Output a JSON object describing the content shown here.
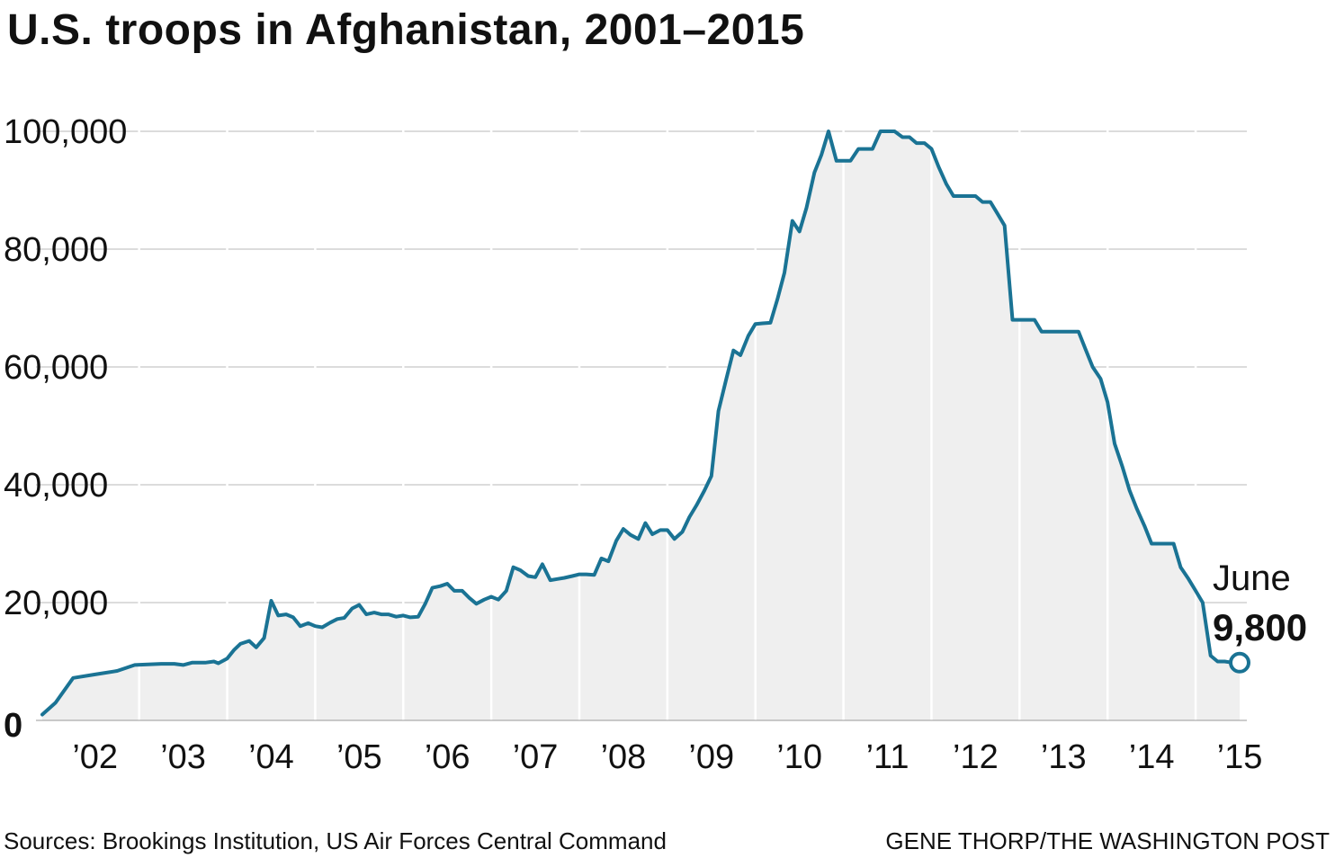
{
  "title": "U.S. troops in Afghanistan, 2001–2015",
  "sources": "Sources: Brookings Institution, US Air Forces Central Command",
  "credit": "GENE THORP/THE WASHINGTON POST",
  "annotation": {
    "label": "June",
    "value": "9,800"
  },
  "colors": {
    "line": "#1a7394",
    "area": "#efefef",
    "grid": "#c8c8c8",
    "yearline": "#ffffff"
  },
  "chart_data": {
    "type": "area",
    "title": "U.S. troops in Afghanistan, 2001–2015",
    "xlabel": "",
    "ylabel": "",
    "ylim": [
      0,
      100000
    ],
    "xlim": [
      2001.9,
      2015.5
    ],
    "grid": true,
    "y_ticks": [
      {
        "value": 0,
        "label": "0"
      },
      {
        "value": 20000,
        "label": "20,000"
      },
      {
        "value": 40000,
        "label": "40,000"
      },
      {
        "value": 60000,
        "label": "60,000"
      },
      {
        "value": 80000,
        "label": "80,000"
      },
      {
        "value": 100000,
        "label": "100,000"
      }
    ],
    "x_ticks": [
      {
        "value": 2002.5,
        "label": "’02"
      },
      {
        "value": 2003.5,
        "label": "’03"
      },
      {
        "value": 2004.5,
        "label": "’04"
      },
      {
        "value": 2005.5,
        "label": "’05"
      },
      {
        "value": 2006.5,
        "label": "’06"
      },
      {
        "value": 2007.5,
        "label": "’07"
      },
      {
        "value": 2008.5,
        "label": "’08"
      },
      {
        "value": 2009.5,
        "label": "’09"
      },
      {
        "value": 2010.5,
        "label": "’10"
      },
      {
        "value": 2011.5,
        "label": "’11"
      },
      {
        "value": 2012.5,
        "label": "’12"
      },
      {
        "value": 2013.5,
        "label": "’13"
      },
      {
        "value": 2014.5,
        "label": "’14"
      },
      {
        "value": 2015.5,
        "label": "’15"
      }
    ],
    "year_boundaries": [
      2003,
      2004,
      2005,
      2006,
      2007,
      2008,
      2009,
      2010,
      2011,
      2012,
      2013,
      2014,
      2015
    ],
    "series": [
      {
        "points": [
          [
            2001.9,
            1000
          ],
          [
            2002.05,
            3000
          ],
          [
            2002.25,
            7200
          ],
          [
            2002.5,
            7800
          ],
          [
            2002.75,
            8400
          ],
          [
            2002.95,
            9400
          ],
          [
            2003.1,
            9500
          ],
          [
            2003.25,
            9600
          ],
          [
            2003.4,
            9600
          ],
          [
            2003.5,
            9400
          ],
          [
            2003.6,
            9800
          ],
          [
            2003.75,
            9800
          ],
          [
            2003.85,
            10000
          ],
          [
            2003.9,
            9700
          ],
          [
            2004.0,
            10500
          ],
          [
            2004.08,
            12000
          ],
          [
            2004.15,
            13000
          ],
          [
            2004.25,
            13500
          ],
          [
            2004.33,
            12400
          ],
          [
            2004.42,
            14000
          ],
          [
            2004.5,
            20300
          ],
          [
            2004.58,
            17800
          ],
          [
            2004.67,
            18000
          ],
          [
            2004.75,
            17500
          ],
          [
            2004.83,
            16000
          ],
          [
            2004.92,
            16500
          ],
          [
            2005.0,
            16000
          ],
          [
            2005.08,
            15800
          ],
          [
            2005.17,
            16600
          ],
          [
            2005.25,
            17200
          ],
          [
            2005.33,
            17400
          ],
          [
            2005.42,
            19000
          ],
          [
            2005.5,
            19600
          ],
          [
            2005.58,
            18000
          ],
          [
            2005.67,
            18300
          ],
          [
            2005.75,
            18000
          ],
          [
            2005.83,
            18000
          ],
          [
            2005.92,
            17600
          ],
          [
            2006.0,
            17800
          ],
          [
            2006.08,
            17500
          ],
          [
            2006.17,
            17600
          ],
          [
            2006.25,
            19800
          ],
          [
            2006.33,
            22500
          ],
          [
            2006.42,
            22800
          ],
          [
            2006.5,
            23200
          ],
          [
            2006.58,
            22000
          ],
          [
            2006.67,
            22000
          ],
          [
            2006.75,
            20800
          ],
          [
            2006.83,
            19800
          ],
          [
            2006.92,
            20500
          ],
          [
            2007.0,
            21000
          ],
          [
            2007.08,
            20500
          ],
          [
            2007.17,
            22000
          ],
          [
            2007.25,
            26000
          ],
          [
            2007.33,
            25500
          ],
          [
            2007.42,
            24500
          ],
          [
            2007.5,
            24300
          ],
          [
            2007.58,
            26500
          ],
          [
            2007.67,
            23800
          ],
          [
            2007.75,
            24000
          ],
          [
            2007.83,
            24200
          ],
          [
            2007.92,
            24500
          ],
          [
            2008.0,
            24800
          ],
          [
            2008.08,
            24800
          ],
          [
            2008.17,
            24700
          ],
          [
            2008.25,
            27500
          ],
          [
            2008.33,
            27000
          ],
          [
            2008.42,
            30500
          ],
          [
            2008.5,
            32500
          ],
          [
            2008.58,
            31500
          ],
          [
            2008.67,
            30800
          ],
          [
            2008.75,
            33500
          ],
          [
            2008.83,
            31600
          ],
          [
            2008.92,
            32300
          ],
          [
            2009.0,
            32300
          ],
          [
            2009.08,
            30800
          ],
          [
            2009.17,
            32000
          ],
          [
            2009.25,
            34500
          ],
          [
            2009.33,
            36500
          ],
          [
            2009.42,
            39000
          ],
          [
            2009.5,
            41500
          ],
          [
            2009.58,
            52500
          ],
          [
            2009.67,
            58000
          ],
          [
            2009.75,
            62800
          ],
          [
            2009.83,
            62000
          ],
          [
            2009.92,
            65300
          ],
          [
            2010.0,
            67300
          ],
          [
            2010.08,
            67400
          ],
          [
            2010.17,
            67500
          ],
          [
            2010.25,
            71500
          ],
          [
            2010.33,
            76000
          ],
          [
            2010.42,
            84800
          ],
          [
            2010.5,
            83000
          ],
          [
            2010.58,
            87000
          ],
          [
            2010.67,
            93000
          ],
          [
            2010.75,
            96000
          ],
          [
            2010.83,
            100000
          ],
          [
            2010.92,
            95000
          ],
          [
            2011.0,
            95000
          ],
          [
            2011.08,
            95000
          ],
          [
            2011.17,
            97000
          ],
          [
            2011.25,
            97000
          ],
          [
            2011.33,
            97000
          ],
          [
            2011.42,
            100000
          ],
          [
            2011.5,
            100000
          ],
          [
            2011.58,
            100000
          ],
          [
            2011.67,
            99000
          ],
          [
            2011.75,
            99000
          ],
          [
            2011.83,
            98000
          ],
          [
            2011.92,
            98000
          ],
          [
            2012.0,
            97000
          ],
          [
            2012.08,
            94000
          ],
          [
            2012.17,
            91000
          ],
          [
            2012.25,
            89000
          ],
          [
            2012.33,
            89000
          ],
          [
            2012.42,
            89000
          ],
          [
            2012.5,
            89000
          ],
          [
            2012.58,
            88000
          ],
          [
            2012.67,
            88000
          ],
          [
            2012.75,
            86000
          ],
          [
            2012.83,
            84000
          ],
          [
            2012.92,
            68000
          ],
          [
            2013.0,
            68000
          ],
          [
            2013.08,
            68000
          ],
          [
            2013.17,
            68000
          ],
          [
            2013.25,
            66000
          ],
          [
            2013.33,
            66000
          ],
          [
            2013.42,
            66000
          ],
          [
            2013.5,
            66000
          ],
          [
            2013.58,
            66000
          ],
          [
            2013.67,
            66000
          ],
          [
            2013.75,
            63000
          ],
          [
            2013.83,
            60000
          ],
          [
            2013.92,
            58000
          ],
          [
            2014.0,
            54000
          ],
          [
            2014.08,
            47000
          ],
          [
            2014.17,
            43000
          ],
          [
            2014.25,
            39000
          ],
          [
            2014.33,
            36000
          ],
          [
            2014.42,
            33000
          ],
          [
            2014.5,
            30000
          ],
          [
            2014.58,
            30000
          ],
          [
            2014.67,
            30000
          ],
          [
            2014.75,
            30000
          ],
          [
            2014.83,
            26000
          ],
          [
            2014.92,
            24000
          ],
          [
            2015.0,
            22000
          ],
          [
            2015.08,
            20000
          ],
          [
            2015.17,
            11000
          ],
          [
            2015.25,
            10000
          ],
          [
            2015.33,
            10000
          ],
          [
            2015.42,
            9800
          ],
          [
            2015.5,
            9800
          ]
        ]
      }
    ]
  }
}
